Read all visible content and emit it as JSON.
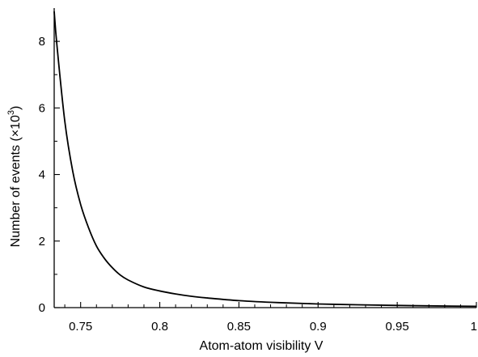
{
  "chart_data": {
    "type": "line",
    "title": "",
    "xlabel": "Atom-atom visibility V",
    "ylabel": "Number of events (×10",
    "ylabel_sup": "3",
    "ylabel_close": ")",
    "xlim": [
      0.7333,
      1.0
    ],
    "ylim": [
      0,
      9.0
    ],
    "grid": false,
    "legend": "none",
    "x_ticks": [
      0.75,
      0.8,
      0.85,
      0.9,
      0.95,
      1.0
    ],
    "x_tick_labels": [
      "0.75",
      "0.8",
      "0.85",
      "0.9",
      "0.95",
      "1"
    ],
    "y_ticks": [
      0,
      2,
      4,
      6,
      8
    ],
    "y_tick_labels": [
      "0",
      "2",
      "4",
      "6",
      "8"
    ],
    "series": [
      {
        "x": [
          0.7333,
          0.735,
          0.74,
          0.745,
          0.75,
          0.755,
          0.76,
          0.765,
          0.77,
          0.775,
          0.78,
          0.79,
          0.8,
          0.81,
          0.82,
          0.83,
          0.85,
          0.875,
          0.9,
          0.925,
          0.95,
          0.975,
          1.0
        ],
        "values": [
          8.9,
          7.9,
          5.6,
          4.1,
          3.1,
          2.4,
          1.85,
          1.48,
          1.2,
          0.98,
          0.83,
          0.62,
          0.5,
          0.41,
          0.34,
          0.29,
          0.21,
          0.15,
          0.11,
          0.085,
          0.065,
          0.05,
          0.04
        ]
      }
    ]
  }
}
